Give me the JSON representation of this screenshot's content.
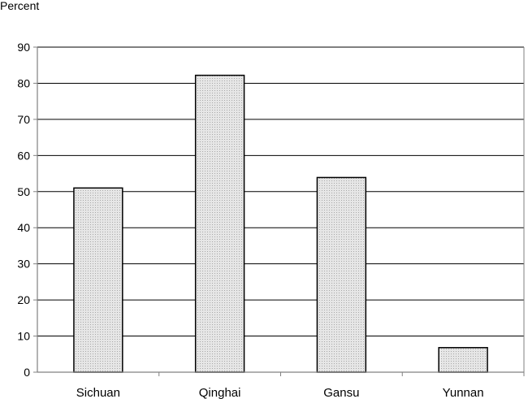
{
  "chart_data": {
    "type": "bar",
    "title": "",
    "xlabel": "",
    "ylabel": "Percent",
    "categories": [
      "Sichuan",
      "Qinghai",
      "Gansu",
      "Yunnan"
    ],
    "values": [
      51,
      82.2,
      53.9,
      6.8
    ],
    "ylim": [
      0,
      90
    ],
    "yticks": [
      0,
      10,
      20,
      30,
      40,
      50,
      60,
      70,
      80,
      90
    ],
    "grid": true,
    "legend": "none",
    "colors": {
      "bar_fill": "#d9d9d9",
      "bar_stroke": "#000000",
      "grid": "#000000",
      "axis": "#808080"
    }
  }
}
